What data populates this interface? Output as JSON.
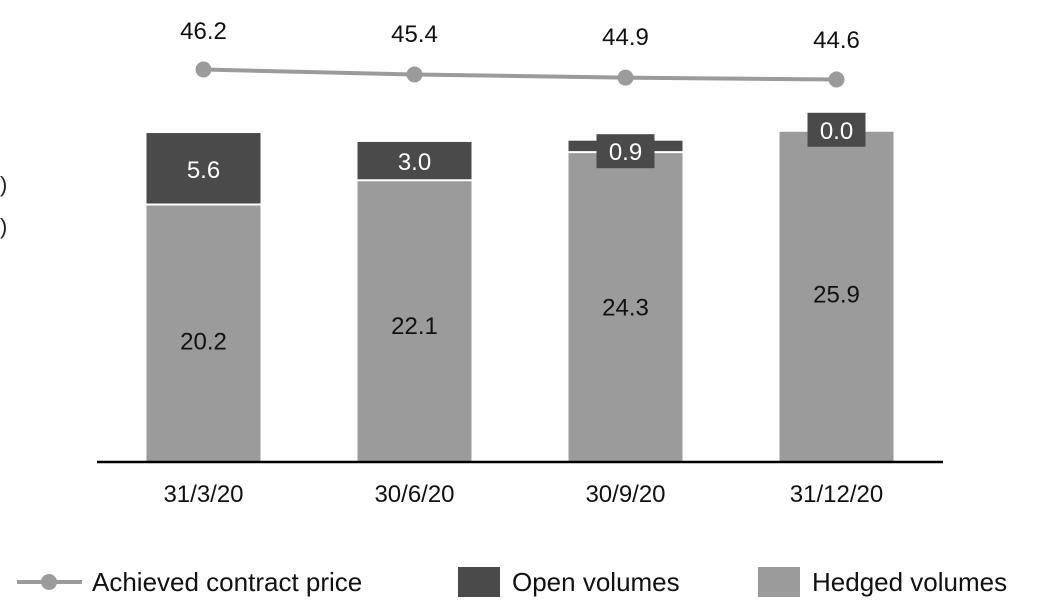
{
  "chart_data": {
    "type": "bar",
    "stacked": true,
    "categories": [
      "31/3/20",
      "30/6/20",
      "30/9/20",
      "31/12/20"
    ],
    "series": [
      {
        "name": "Hedged volumes",
        "kind": "bar",
        "values": [
          20.2,
          22.1,
          24.3,
          25.9
        ],
        "color": "#9b9b9b"
      },
      {
        "name": "Open volumes",
        "kind": "bar",
        "values": [
          5.6,
          3.0,
          0.9,
          0.0
        ],
        "color": "#4a4a4a"
      },
      {
        "name": "Achieved contract price",
        "kind": "line",
        "values": [
          46.2,
          45.4,
          44.9,
          44.6
        ],
        "color": "#9b9b9b"
      }
    ],
    "title": "",
    "xlabel": "",
    "ylabel": "",
    "legend_position": "bottom",
    "grid": false
  },
  "clipped_text": [
    ")",
    ")"
  ],
  "legend": {
    "items": [
      "Achieved contract price",
      "Open volumes",
      "Hedged volumes"
    ]
  }
}
